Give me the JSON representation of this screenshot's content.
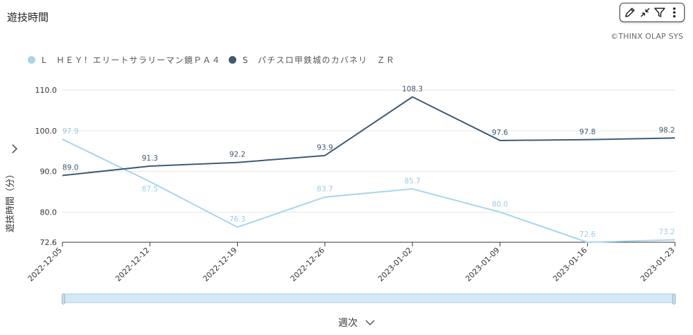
{
  "title": "遊技時間",
  "credit": "©THINX OLAP SYS",
  "toolbar": {
    "icons": [
      "pencil-icon",
      "minimize-icon",
      "filter-icon",
      "more-vertical-icon"
    ]
  },
  "colors": {
    "series_l": "#a8d4ea",
    "series_s": "#3d5a73",
    "grid": "#e6e6e6",
    "axis": "#333333"
  },
  "chart_data": {
    "type": "line",
    "xlabel": "週次",
    "ylabel": "遊技時間（分）",
    "ylim": [
      72.6,
      113
    ],
    "yticks": [
      "110.0",
      "100.0",
      "90.0",
      "80.0",
      "72.6"
    ],
    "ytick_values": [
      110,
      100,
      90,
      80,
      72.6
    ],
    "grid": true,
    "legend_position": "top-left",
    "x": [
      "2022-12-05",
      "2022-12-12",
      "2022-12-19",
      "2022-12-26",
      "2023-01-02",
      "2023-01-09",
      "2023-01-16",
      "2023-01-23"
    ],
    "series": [
      {
        "name": "L　ＨＥＹ！エリートサラリーマン鏡ＰＡ４",
        "values": [
          97.9,
          87.5,
          76.3,
          83.7,
          85.7,
          80.0,
          72.6,
          73.2
        ],
        "labels": [
          "97.9",
          "87.5",
          "76.3",
          "83.7",
          "85.7",
          "80.0",
          "72.6",
          "73.2"
        ]
      },
      {
        "name": "S　パチスロ甲鉄城のカバネリ　ＺＲ",
        "values": [
          89.0,
          91.3,
          92.2,
          93.9,
          108.3,
          97.6,
          97.8,
          98.2
        ],
        "labels": [
          "89.0",
          "91.3",
          "92.2",
          "93.9",
          "108.3",
          "97.6",
          "97.8",
          "98.2"
        ]
      }
    ]
  }
}
